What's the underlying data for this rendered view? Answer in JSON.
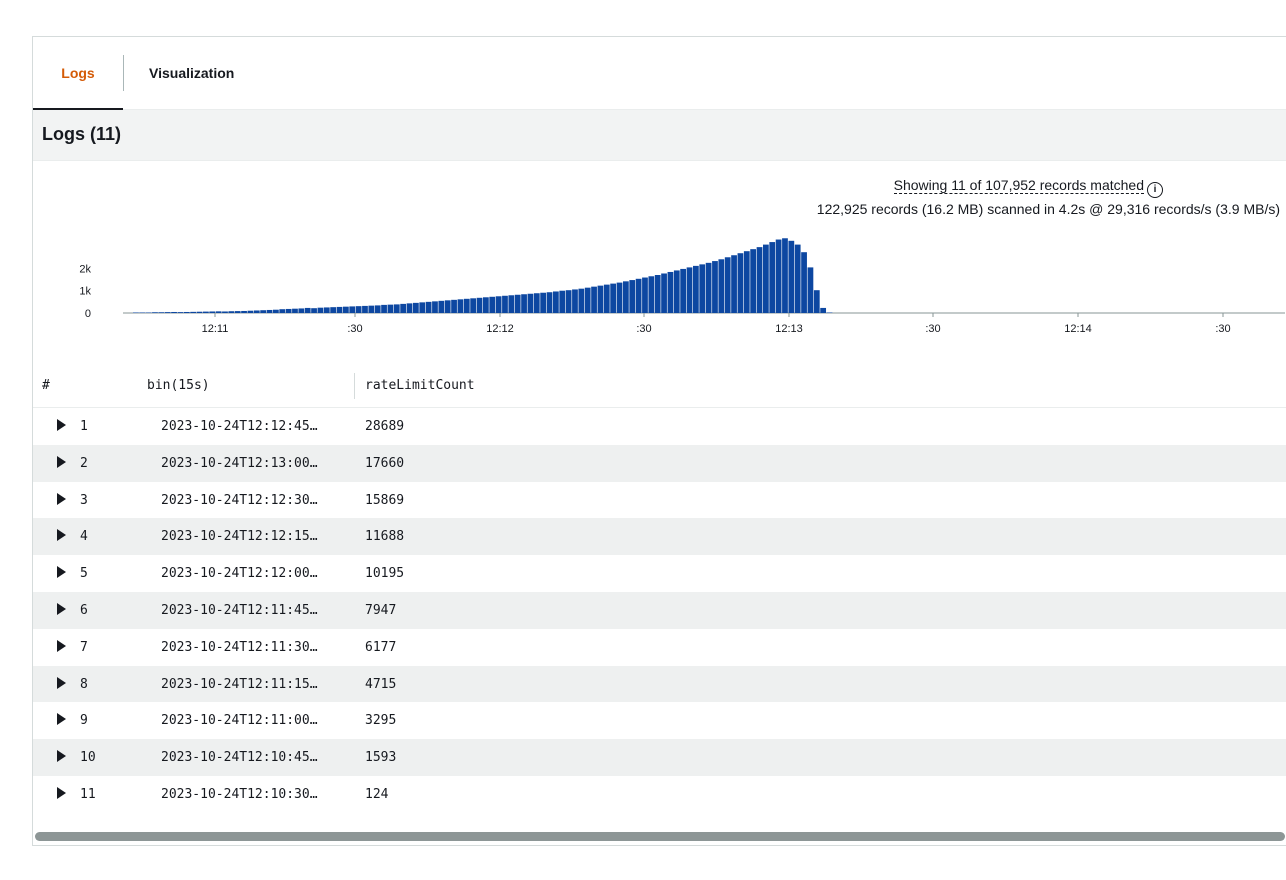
{
  "tabs": {
    "logs": "Logs",
    "visualization": "Visualization"
  },
  "logs_title": "Logs (11)",
  "summary": {
    "showing": "Showing 11 of 107,952 records matched",
    "scanned": "122,925 records (16.2 MB) scanned in 4.2s @ 29,316 records/s (3.9 MB/s)"
  },
  "colors": {
    "accent": "#d45b07",
    "bars": "#0d47a1",
    "row_alt": "#eef0f0"
  },
  "chart_data": {
    "type": "bar",
    "y_ticks": [
      "2k",
      "1k",
      "0"
    ],
    "x_ticks": [
      "12:11",
      ":30",
      "12:12",
      ":30",
      "12:13",
      ":30",
      "12:14",
      ":30"
    ],
    "ylim": [
      0,
      3000
    ],
    "values": [
      20,
      20,
      20,
      30,
      30,
      35,
      40,
      35,
      40,
      45,
      50,
      55,
      60,
      65,
      60,
      70,
      75,
      80,
      90,
      100,
      110,
      120,
      130,
      150,
      160,
      170,
      180,
      200,
      190,
      210,
      220,
      230,
      240,
      250,
      260,
      270,
      280,
      290,
      300,
      320,
      330,
      340,
      360,
      380,
      400,
      420,
      440,
      460,
      480,
      500,
      520,
      540,
      560,
      580,
      600,
      620,
      640,
      660,
      680,
      700,
      720,
      740,
      760,
      780,
      800,
      820,
      850,
      880,
      900,
      930,
      960,
      1000,
      1040,
      1080,
      1120,
      1160,
      1200,
      1250,
      1300,
      1350,
      1400,
      1450,
      1500,
      1560,
      1620,
      1680,
      1740,
      1800,
      1860,
      1920,
      1980,
      2050,
      2120,
      2200,
      2280,
      2360,
      2440,
      2520,
      2600,
      2700,
      2800,
      2900,
      2950,
      2850,
      2700,
      2400,
      1800,
      900,
      200,
      20
    ]
  },
  "table": {
    "headers": {
      "hash": "#",
      "bin": "bin(15s)",
      "rate": "rateLimitCount"
    },
    "rows": [
      {
        "num": "1",
        "bin": "2023-10-24T12:12:45…",
        "rate": "28689"
      },
      {
        "num": "2",
        "bin": "2023-10-24T12:13:00…",
        "rate": "17660"
      },
      {
        "num": "3",
        "bin": "2023-10-24T12:12:30…",
        "rate": "15869"
      },
      {
        "num": "4",
        "bin": "2023-10-24T12:12:15…",
        "rate": "11688"
      },
      {
        "num": "5",
        "bin": "2023-10-24T12:12:00…",
        "rate": "10195"
      },
      {
        "num": "6",
        "bin": "2023-10-24T12:11:45…",
        "rate": "7947"
      },
      {
        "num": "7",
        "bin": "2023-10-24T12:11:30…",
        "rate": "6177"
      },
      {
        "num": "8",
        "bin": "2023-10-24T12:11:15…",
        "rate": "4715"
      },
      {
        "num": "9",
        "bin": "2023-10-24T12:11:00…",
        "rate": "3295"
      },
      {
        "num": "10",
        "bin": "2023-10-24T12:10:45…",
        "rate": "1593"
      },
      {
        "num": "11",
        "bin": "2023-10-24T12:10:30…",
        "rate": "124"
      }
    ]
  }
}
